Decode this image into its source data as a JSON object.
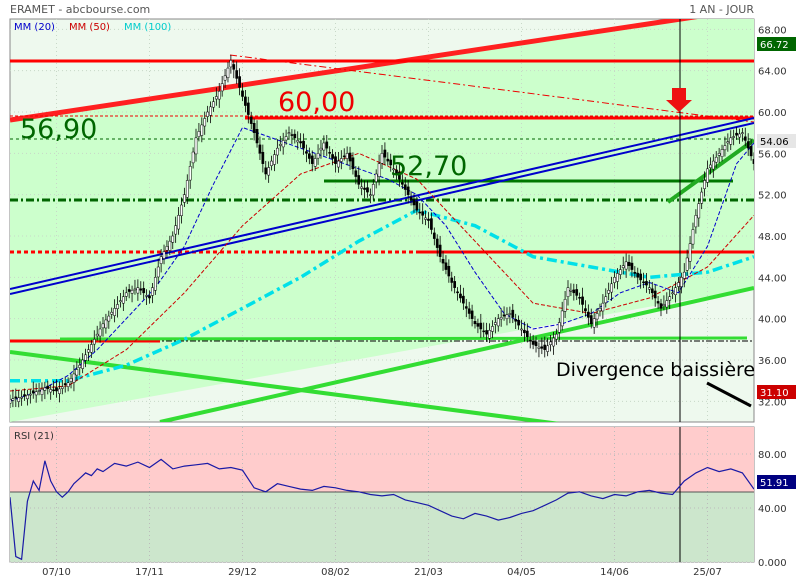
{
  "header": {
    "instrument": "ERAMET - abcbourse.com",
    "period": "1 AN - JOUR"
  },
  "chart_data": [
    {
      "type": "line",
      "panel": "price",
      "ylim": [
        30,
        69
      ],
      "y_ticks": [
        "68.00",
        "64.00",
        "60.00",
        "56.00",
        "52.00",
        "48.00",
        "44.00",
        "40.00",
        "36.00",
        "32.00"
      ],
      "x_tick_labels": [
        "07/10",
        "17/11",
        "29/12",
        "08/02",
        "21/03",
        "04/05",
        "14/06",
        "25/07"
      ],
      "legend": [
        {
          "label": "MM (20)",
          "color": "#0000cc"
        },
        {
          "label": "MM (50)",
          "color": "#cc0000"
        },
        {
          "label": "MM (100)",
          "color": "#00e5ee"
        }
      ],
      "series": [
        {
          "name": "Price",
          "x": [
            0,
            4,
            8,
            12,
            16,
            20,
            24,
            28,
            32,
            36,
            40,
            44,
            48,
            52,
            56,
            60,
            64,
            68,
            72,
            76,
            80,
            84,
            88,
            92,
            96,
            100,
            104,
            108,
            112,
            116,
            120,
            124,
            128,
            132,
            136,
            140,
            144,
            148,
            152,
            156,
            160,
            164,
            168,
            172,
            176,
            180,
            184,
            188,
            192,
            196,
            200,
            204,
            208,
            212,
            216,
            220,
            224,
            228,
            232,
            236,
            240,
            244,
            248,
            252,
            256
          ],
          "values": [
            32.2,
            32.4,
            32.8,
            33.3,
            33.0,
            33.8,
            35.5,
            37.5,
            39.5,
            41.0,
            42.5,
            43.0,
            42.0,
            46.0,
            48.0,
            52.0,
            57.5,
            60.0,
            62.0,
            65.0,
            61.5,
            58.0,
            54.0,
            56.5,
            58.0,
            57.0,
            55.0,
            57.0,
            55.0,
            56.0,
            53.0,
            52.0,
            56.0,
            54.5,
            52.5,
            50.5,
            49.5,
            46.0,
            43.5,
            41.5,
            39.5,
            38.5,
            40.0,
            40.5,
            39.0,
            37.5,
            37.0,
            38.5,
            43.0,
            42.0,
            39.5,
            41.5,
            44.0,
            45.5,
            44.0,
            43.0,
            41.0,
            42.5,
            44.5,
            50.0,
            54.5,
            56.0,
            57.5,
            58.0,
            55.0
          ]
        },
        {
          "name": "MM (20)",
          "x": [
            0,
            10,
            20,
            30,
            40,
            50,
            60,
            70,
            80,
            90,
            100,
            110,
            120,
            130,
            140,
            150,
            160,
            170,
            180,
            190,
            200,
            210,
            220,
            230,
            240,
            250,
            256
          ],
          "values": [
            32.0,
            33.0,
            34.5,
            37.0,
            40.0,
            43.0,
            47.0,
            53.0,
            58.5,
            57.5,
            56.5,
            55.5,
            54.5,
            53.5,
            52.0,
            49.0,
            44.5,
            40.5,
            39.0,
            39.5,
            40.5,
            42.5,
            43.5,
            42.5,
            47.0,
            55.0,
            57.0
          ]
        },
        {
          "name": "MM (50)",
          "x": [
            0,
            20,
            40,
            60,
            80,
            100,
            120,
            140,
            160,
            180,
            200,
            220,
            240,
            256
          ],
          "values": [
            33.0,
            33.5,
            37.0,
            42.5,
            49.0,
            54.0,
            56.0,
            53.5,
            47.5,
            41.5,
            40.5,
            42.0,
            45.0,
            50.0
          ]
        },
        {
          "name": "MM (100)",
          "x": [
            0,
            20,
            40,
            60,
            80,
            100,
            120,
            140,
            160,
            180,
            200,
            220,
            240,
            256
          ],
          "values": [
            34.0,
            34.0,
            35.5,
            38.0,
            41.0,
            44.0,
            47.5,
            50.5,
            49.0,
            46.0,
            45.0,
            44.0,
            44.5,
            46.0
          ]
        }
      ],
      "annotations": [
        {
          "text": "60,00"
        },
        {
          "text": "56,90"
        },
        {
          "text": "52,70"
        },
        {
          "text": "Divergence baissière"
        }
      ],
      "badges": [
        {
          "text": "66.72",
          "color": "#006600"
        },
        {
          "text": "54.06",
          "color": "#e6e6e6"
        },
        {
          "text": "31.10",
          "color": "#cc0000"
        }
      ]
    },
    {
      "type": "line",
      "panel": "rsi",
      "title": "RSI (21)",
      "ylim": [
        0,
        100
      ],
      "y_ticks": [
        "80.00",
        "40.00",
        "0.000"
      ],
      "midline": 50,
      "series": [
        {
          "name": "RSI (21)",
          "x": [
            0,
            2,
            4,
            6,
            8,
            10,
            12,
            14,
            16,
            18,
            20,
            22,
            24,
            26,
            28,
            30,
            32,
            36,
            40,
            44,
            48,
            52,
            56,
            60,
            64,
            68,
            72,
            76,
            80,
            84,
            88,
            92,
            96,
            100,
            104,
            108,
            112,
            116,
            120,
            124,
            128,
            132,
            136,
            140,
            144,
            148,
            152,
            156,
            160,
            164,
            168,
            172,
            176,
            180,
            184,
            188,
            192,
            196,
            200,
            204,
            208,
            212,
            216,
            220,
            224,
            228,
            232,
            236,
            240,
            244,
            248,
            252,
            256
          ],
          "values": [
            48.0,
            4.0,
            2.0,
            45.0,
            60.0,
            53.0,
            75.0,
            60.0,
            52.0,
            48.0,
            52.0,
            58.0,
            62.0,
            66.0,
            64.0,
            69.0,
            67.0,
            73.0,
            71.0,
            74.0,
            70.0,
            76.0,
            69.0,
            71.0,
            72.0,
            73.0,
            69.0,
            70.0,
            68.0,
            55.0,
            52.0,
            58.0,
            56.0,
            54.0,
            53.0,
            56.0,
            55.0,
            53.0,
            52.0,
            50.0,
            49.0,
            50.0,
            46.0,
            44.0,
            42.0,
            38.0,
            34.0,
            32.0,
            36.0,
            34.0,
            31.0,
            33.0,
            36.0,
            38.0,
            42.0,
            46.0,
            51.0,
            52.0,
            49.0,
            47.0,
            50.0,
            49.0,
            52.0,
            53.0,
            51.0,
            50.0,
            60.0,
            66.0,
            70.0,
            67.0,
            69.0,
            66.0,
            54.0
          ]
        }
      ],
      "badges": [
        {
          "text": "51.91",
          "color": "#000080"
        }
      ]
    }
  ],
  "colors": {
    "price_background": "#ccffcc",
    "panel_background": "#eef9ee",
    "rsi_overbought_zone": "#ffcccc",
    "rsi_oversold_zone": "#cce6cc",
    "resistance": "#ff0000",
    "support_green": "#33cc33",
    "channel_blue": "#0000cc",
    "annotation_dark_green": "#006600"
  }
}
